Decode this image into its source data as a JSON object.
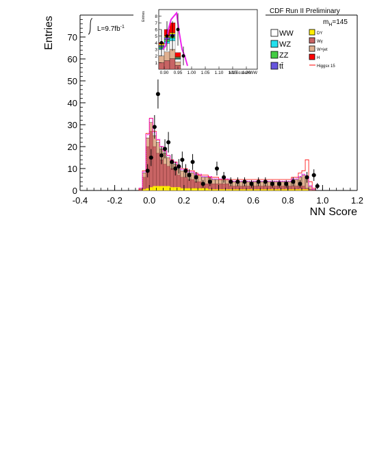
{
  "header": {
    "experiment": "CDF Run II Preliminary",
    "mass_label": "m",
    "mass_sub": "H",
    "mass_value": "=145",
    "lumi_label": "L=9.7fb",
    "lumi_sup": "-1"
  },
  "legend": {
    "left": [
      {
        "label": "WW",
        "color": "#ffffff"
      },
      {
        "label": "WZ",
        "color": "#22e1ee"
      },
      {
        "label": "ZZ",
        "color": "#44cc44"
      },
      {
        "label": "tt̄",
        "color": "#6655dd"
      }
    ],
    "right": [
      {
        "label": "DY",
        "color": "#ffee00"
      },
      {
        "label": "Wγ",
        "color": "#c86464"
      },
      {
        "label": "W+jet",
        "color": "#e0b090"
      },
      {
        "label": "H",
        "color": "#ff0000"
      },
      {
        "label": "Higgsx 15",
        "color": "#ff0000",
        "line": true
      }
    ]
  },
  "chart_data": [
    {
      "type": "bar",
      "xlabel": "NN Score",
      "ylabel": "Entries",
      "xlim": [
        -0.4,
        1.2
      ],
      "ylim": [
        0,
        80
      ],
      "xticks": [
        "-0.4",
        "-0.2",
        "0.0",
        "0.2",
        "0.4",
        "0.6",
        "0.8",
        "1.0",
        "1.2"
      ],
      "yticks": [
        "0",
        "10",
        "20",
        "30",
        "40",
        "50",
        "60",
        "70"
      ],
      "bin_edges_start": -0.06,
      "bin_width": 0.02,
      "background_total": [
        1,
        8,
        24,
        31,
        25,
        22,
        19,
        17,
        15,
        13,
        12,
        10,
        9,
        9,
        8,
        8,
        7,
        7,
        6,
        6,
        6,
        5,
        5,
        5,
        5,
        5,
        4,
        4,
        4,
        4,
        4,
        4,
        4,
        4,
        4,
        4,
        4,
        4,
        4,
        4,
        4,
        4,
        4,
        4,
        5,
        5,
        6,
        7,
        6,
        2,
        0.5
      ],
      "wgamma": [
        0.5,
        6,
        20,
        27,
        20,
        17,
        14,
        12,
        11,
        10,
        9,
        7,
        6,
        6,
        5,
        5,
        4,
        4,
        3,
        3,
        3,
        3,
        3,
        3,
        3,
        3,
        2,
        2,
        2,
        2,
        2,
        2,
        2,
        2,
        2,
        2,
        2,
        2,
        2,
        2,
        2,
        2,
        2,
        2,
        2,
        2,
        2,
        2,
        1,
        0.5,
        0.2
      ],
      "dy": [
        0,
        0.5,
        1,
        1.5,
        2,
        2,
        2,
        2,
        2,
        1.5,
        1.5,
        1.5,
        1,
        1,
        1,
        1,
        1,
        1,
        1,
        1,
        0.5,
        0.5,
        0.5,
        0.5,
        0.5,
        0.5,
        0.5,
        0.5,
        0.5,
        0.5,
        0.5,
        0.5,
        0.5,
        0.5,
        0.5,
        0.5,
        0.5,
        0.5,
        0.5,
        0.5,
        0.5,
        0.5,
        0.5,
        0.5,
        0.5,
        0.5,
        0.5,
        0.5,
        0.5,
        0,
        0
      ],
      "higgs_x15": [
        1,
        9,
        26,
        33,
        27,
        23,
        20,
        18,
        16,
        14,
        13,
        11,
        10,
        10,
        9,
        9,
        8,
        7,
        7,
        7,
        6,
        6,
        6,
        5,
        5,
        5,
        5,
        5,
        5,
        5,
        5,
        5,
        5,
        5,
        5,
        5,
        5,
        5,
        5,
        5,
        5,
        5,
        5,
        5,
        6,
        6,
        8,
        9,
        14,
        4,
        1
      ],
      "data_points": [
        {
          "x": -0.01,
          "y": 9
        },
        {
          "x": 0.01,
          "y": 15
        },
        {
          "x": 0.03,
          "y": 29
        },
        {
          "x": 0.05,
          "y": 44
        },
        {
          "x": 0.07,
          "y": 16
        },
        {
          "x": 0.09,
          "y": 19
        },
        {
          "x": 0.11,
          "y": 22
        },
        {
          "x": 0.13,
          "y": 13
        },
        {
          "x": 0.15,
          "y": 10
        },
        {
          "x": 0.17,
          "y": 11
        },
        {
          "x": 0.19,
          "y": 14
        },
        {
          "x": 0.21,
          "y": 9
        },
        {
          "x": 0.23,
          "y": 7
        },
        {
          "x": 0.25,
          "y": 13
        },
        {
          "x": 0.27,
          "y": 6
        },
        {
          "x": 0.31,
          "y": 3
        },
        {
          "x": 0.35,
          "y": 4
        },
        {
          "x": 0.39,
          "y": 10
        },
        {
          "x": 0.43,
          "y": 6
        },
        {
          "x": 0.47,
          "y": 4
        },
        {
          "x": 0.51,
          "y": 4
        },
        {
          "x": 0.55,
          "y": 4
        },
        {
          "x": 0.59,
          "y": 3
        },
        {
          "x": 0.63,
          "y": 4
        },
        {
          "x": 0.67,
          "y": 4
        },
        {
          "x": 0.71,
          "y": 3
        },
        {
          "x": 0.75,
          "y": 3
        },
        {
          "x": 0.79,
          "y": 3
        },
        {
          "x": 0.83,
          "y": 4
        },
        {
          "x": 0.87,
          "y": 3
        },
        {
          "x": 0.91,
          "y": 6
        },
        {
          "x": 0.95,
          "y": 7
        },
        {
          "x": 0.97,
          "y": 2
        }
      ]
    },
    {
      "type": "bar",
      "xlabel": "NN ScoreHWW",
      "ylabel": "Entries",
      "xlim": [
        0.88,
        1.24
      ],
      "ylim": [
        0,
        9
      ],
      "xticks": [
        "0.90",
        "0.95",
        "1.00",
        "1.05",
        "1.10",
        "1.15",
        "1.20"
      ],
      "yticks": [
        "1",
        "2",
        "3",
        "4",
        "5",
        "6",
        "7",
        "8"
      ],
      "bin_edges_start": 0.88,
      "bin_width": 0.02,
      "stack_order": [
        "wgamma",
        "wjet",
        "ww",
        "wz",
        "zz",
        "ttbar",
        "dy",
        "h"
      ],
      "stacks": [
        {
          "wgamma": 1.0,
          "wjet": 1.0,
          "ww": 1.0,
          "wz": 0.2,
          "zz": 0.2,
          "ttbar": 0.2,
          "dy": 0.2,
          "h": 0.2
        },
        {
          "wgamma": 1.3,
          "wjet": 1.3,
          "ww": 1.3,
          "wz": 0.3,
          "zz": 0.3,
          "ttbar": 0.3,
          "dy": 0.2,
          "h": 1.0
        },
        {
          "wgamma": 1.6,
          "wjet": 1.4,
          "ww": 1.3,
          "wz": 0.4,
          "zz": 0.3,
          "ttbar": 0.3,
          "dy": 0.2,
          "h": 1.5
        },
        {
          "wgamma": 0.6,
          "wjet": 0.5,
          "ww": 0.4,
          "wz": 0.1,
          "zz": 0.1,
          "ttbar": 0.1,
          "dy": 0.1,
          "h": 0.6
        }
      ],
      "higgs_x15_curve": [
        {
          "x": 0.895,
          "y": 3.0
        },
        {
          "x": 0.905,
          "y": 3.5
        },
        {
          "x": 0.915,
          "y": 6.0
        },
        {
          "x": 0.925,
          "y": 7.5
        },
        {
          "x": 0.935,
          "y": 8.0
        },
        {
          "x": 0.945,
          "y": 8.5
        },
        {
          "x": 0.955,
          "y": 5.5
        },
        {
          "x": 0.965,
          "y": 3.0
        },
        {
          "x": 0.975,
          "y": 2.0
        },
        {
          "x": 0.985,
          "y": 0.5
        }
      ],
      "data_points": [
        {
          "x": 0.89,
          "y": 4
        },
        {
          "x": 0.91,
          "y": 5
        },
        {
          "x": 0.93,
          "y": 5
        },
        {
          "x": 0.95,
          "y": 6
        },
        {
          "x": 0.97,
          "y": 2
        }
      ]
    }
  ]
}
